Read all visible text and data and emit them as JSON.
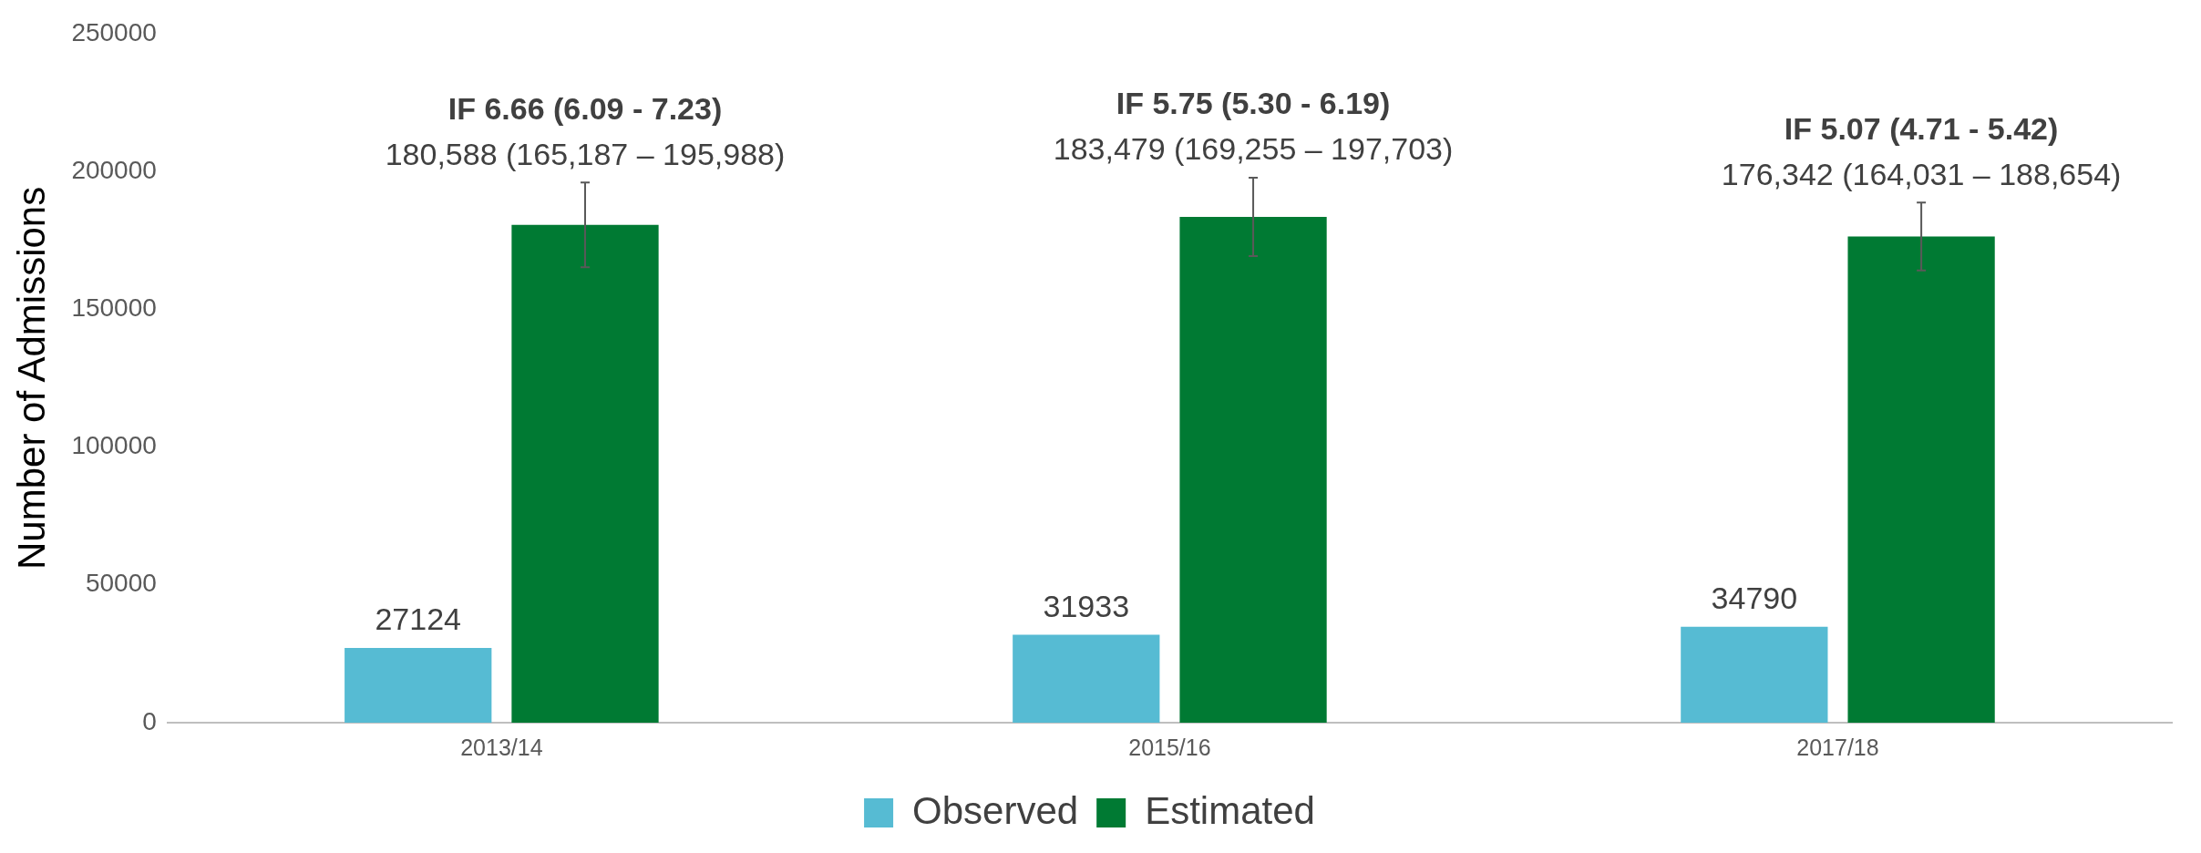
{
  "chart_data": {
    "type": "bar",
    "ylabel": "Number of Admissions",
    "categories": [
      "2013/14",
      "2015/16",
      "2017/18"
    ],
    "series": [
      {
        "name": "Observed",
        "color": "#56bbd3",
        "values": [
          27124,
          31933,
          34790
        ],
        "value_labels": [
          "27124",
          "31933",
          "34790"
        ]
      },
      {
        "name": "Estimated",
        "color": "#007a33",
        "values": [
          180588,
          183479,
          176342
        ],
        "errors": [
          [
            165187,
            195988
          ],
          [
            169255,
            197703
          ],
          [
            164031,
            188654
          ]
        ],
        "value_labels": [
          "180,588 (165,187 – 195,988)",
          "183,479 (169,255 – 197,703)",
          "176,342 (164,031 – 188,654)"
        ]
      }
    ],
    "ylim": [
      0,
      250000
    ],
    "yticks": [
      0,
      50000,
      100000,
      150000,
      200000,
      250000
    ],
    "grid": false,
    "legend": "bottom",
    "annotations": [
      "IF 6.66 (6.09 - 7.23)",
      "IF 5.75 (5.30 - 6.19)",
      "IF 5.07 (4.71 - 5.42)"
    ]
  }
}
